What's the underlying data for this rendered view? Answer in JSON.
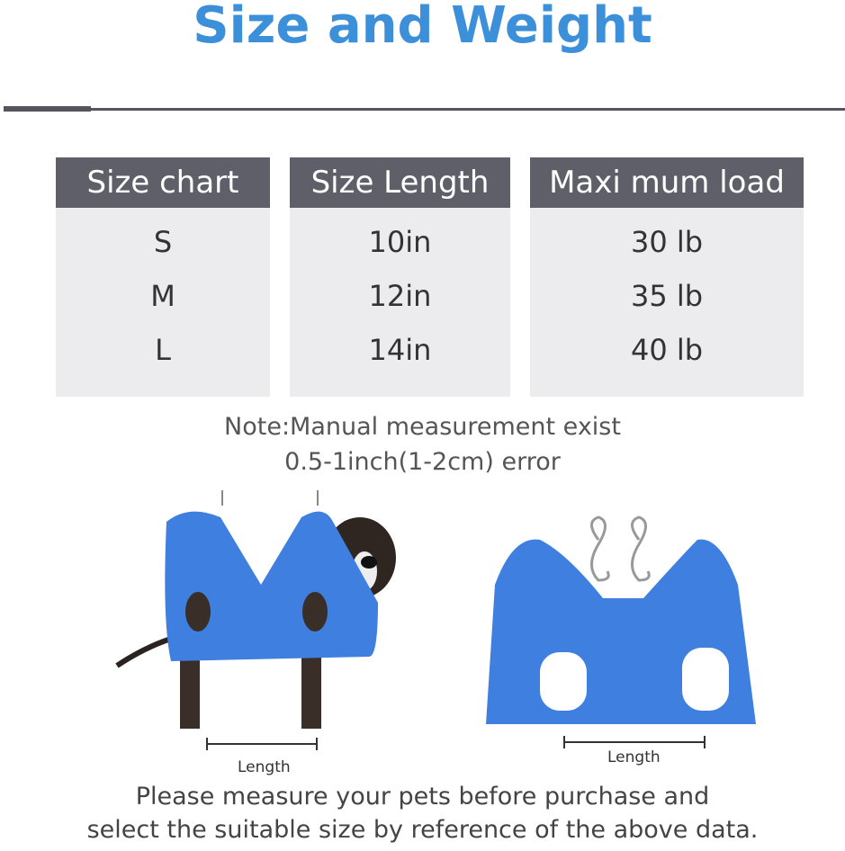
{
  "title": "Size and Weight",
  "table": {
    "headers": [
      "Size chart",
      "Size Length",
      "Maxi mum load"
    ],
    "rows": [
      [
        "S",
        "10in",
        "30 lb"
      ],
      [
        "M",
        "12in",
        "35 lb"
      ],
      [
        "L",
        "14in",
        "40 lb"
      ]
    ]
  },
  "note": [
    "Note:Manual measurement exist",
    "0.5-1inch(1-2cm) error"
  ],
  "images": {
    "left_length_label": "Length",
    "right_length_label": "Length"
  },
  "footer": [
    "Please measure your pets before purchase and",
    "select the suitable size by reference of the above data."
  ],
  "colors": {
    "title": "#3c8fd9",
    "header": "#5f5f69",
    "cell": "#ececee",
    "hammock": "#3f7fe0"
  }
}
